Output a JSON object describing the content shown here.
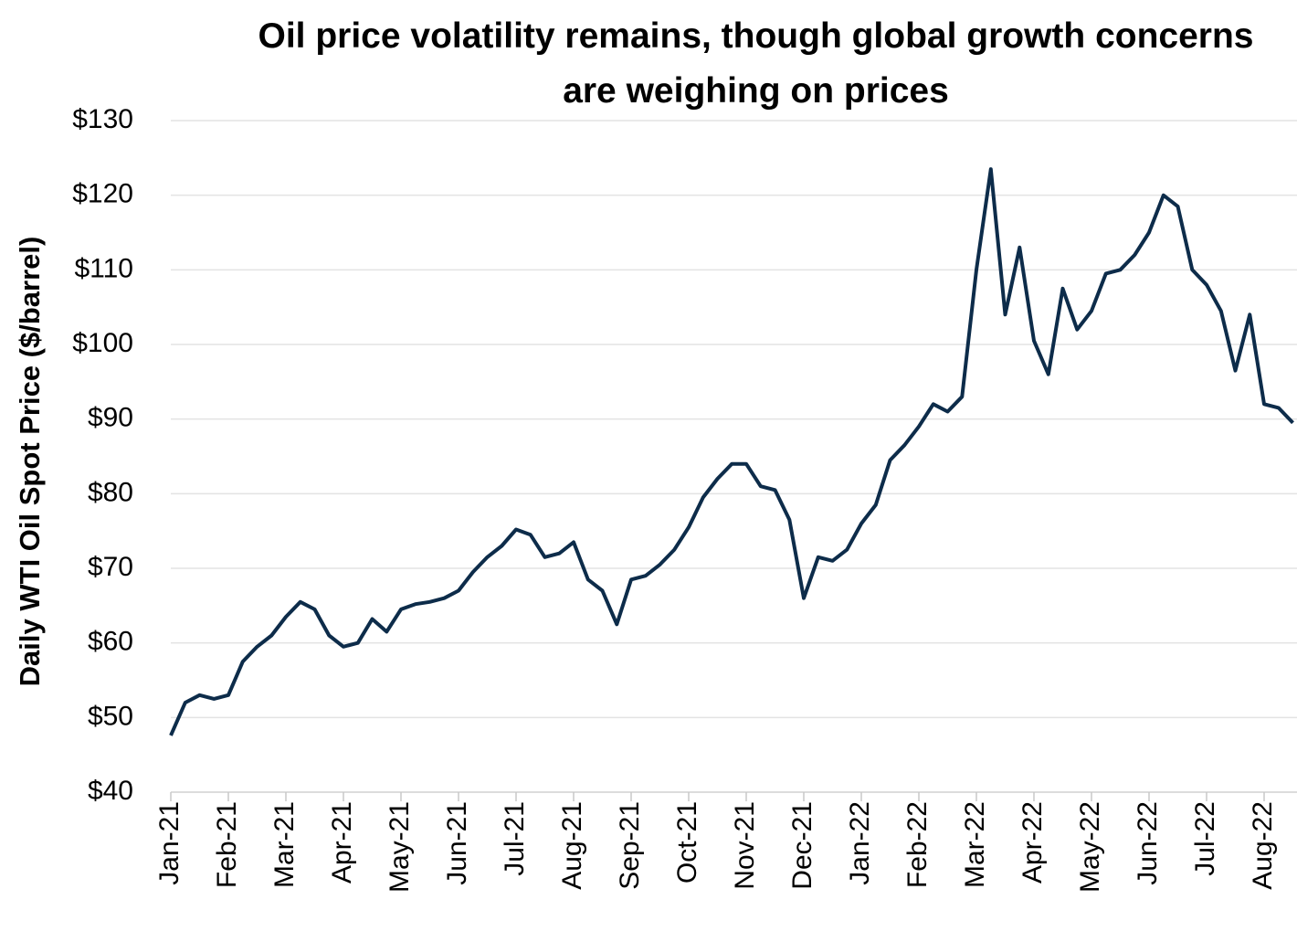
{
  "chart_data": {
    "type": "line",
    "title": "Oil price volatility remains, though global growth concerns are weighing on prices",
    "y_label": "Daily WTI Oil Spot Price ($/barrel)",
    "categories": [
      "Jan-21",
      null,
      null,
      null,
      "Feb-21",
      null,
      null,
      null,
      "Mar-21",
      null,
      null,
      null,
      "Apr-21",
      null,
      null,
      null,
      "May-21",
      null,
      null,
      null,
      "Jun-21",
      null,
      null,
      null,
      "Jul-21",
      null,
      null,
      null,
      "Aug-21",
      null,
      null,
      null,
      "Sep-21",
      null,
      null,
      null,
      "Oct-21",
      null,
      null,
      null,
      "Nov-21",
      null,
      null,
      null,
      "Dec-21",
      null,
      null,
      null,
      "Jan-22",
      null,
      null,
      null,
      "Feb-22",
      null,
      null,
      null,
      "Mar-22",
      null,
      null,
      null,
      "Apr-22",
      null,
      null,
      null,
      "May-22",
      null,
      null,
      null,
      "Jun-22",
      null,
      null,
      null,
      "Jul-22",
      null,
      null,
      null,
      "Aug-22",
      null,
      null
    ],
    "series": [
      {
        "name": "WTI",
        "color": "#0d2c4a",
        "values": [
          47.6,
          52,
          53,
          52.5,
          53,
          57.5,
          59.5,
          61,
          63.5,
          65.5,
          64.5,
          61,
          59.5,
          60,
          63.2,
          61.5,
          64.5,
          65.2,
          65.5,
          66,
          67,
          69.5,
          71.5,
          73,
          75.2,
          74.5,
          71.5,
          72,
          73.5,
          68.5,
          67,
          62.5,
          68.5,
          69,
          70.5,
          72.5,
          75.5,
          79.5,
          82,
          84,
          84,
          81,
          80.5,
          76.5,
          66,
          71.5,
          71,
          72.5,
          76,
          78.5,
          84.5,
          86.5,
          89,
          92,
          91,
          93,
          110,
          123.5,
          104,
          113,
          100.5,
          96,
          107.5,
          102,
          104.5,
          109.5,
          110,
          112,
          115,
          120,
          118.5,
          110,
          108,
          104.5,
          96.5,
          104,
          92,
          91.5,
          89.5
        ]
      }
    ],
    "ylim": [
      40,
      130
    ],
    "yticks": [
      {
        "value": 40,
        "label": "$40"
      },
      {
        "value": 50,
        "label": "$50"
      },
      {
        "value": 60,
        "label": "$60"
      },
      {
        "value": 70,
        "label": "$70"
      },
      {
        "value": 80,
        "label": "$80"
      },
      {
        "value": 90,
        "label": "$90"
      },
      {
        "value": 100,
        "label": "$100"
      },
      {
        "value": 110,
        "label": "$110"
      },
      {
        "value": 120,
        "label": "$120"
      },
      {
        "value": 130,
        "label": "$130"
      }
    ],
    "grid": true
  }
}
